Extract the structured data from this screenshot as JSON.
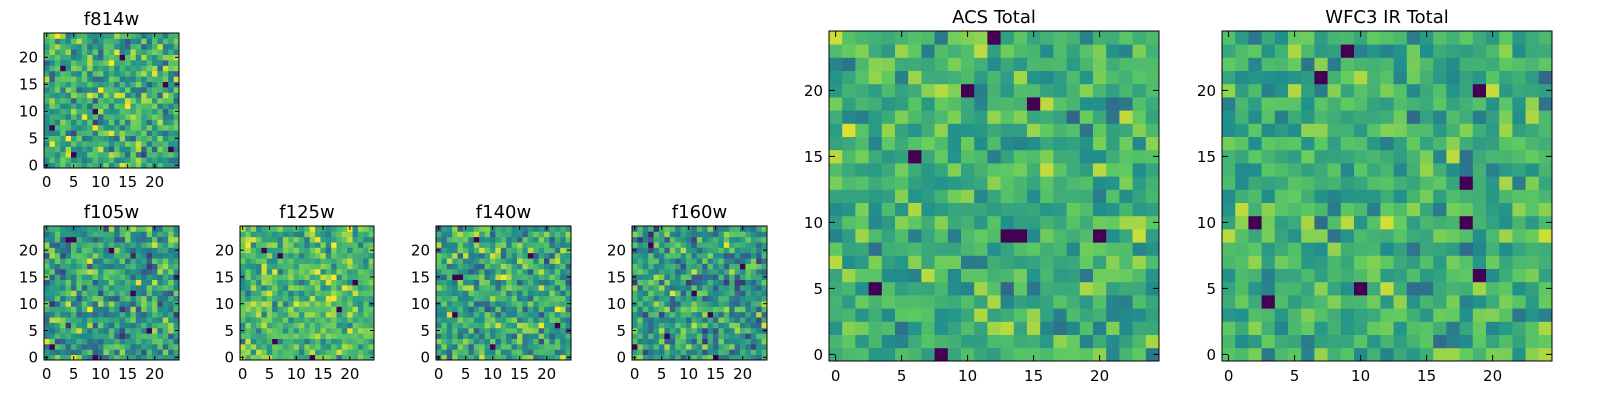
{
  "figure": {
    "description_none": ""
  },
  "colormap": {
    "name": "viridis",
    "stops": [
      "#440154",
      "#3b528b",
      "#21918c",
      "#5ec962",
      "#fde725"
    ]
  },
  "chart_data": [
    {
      "id": "f814w",
      "type": "heatmap",
      "title": "f814w",
      "grid_size": 25,
      "xlim": [
        -0.5,
        24.5
      ],
      "ylim": [
        -0.5,
        24.5
      ],
      "xticks": [
        0,
        5,
        10,
        15,
        20
      ],
      "yticks": [
        0,
        5,
        10,
        15,
        20
      ],
      "value_range": [
        0,
        1
      ],
      "mean_level": 0.62,
      "spread": 0.28,
      "seed": 814,
      "dark_cells": [
        [
          5,
          2
        ],
        [
          9,
          10
        ],
        [
          23,
          3
        ],
        [
          22,
          15
        ],
        [
          14,
          20
        ],
        [
          3,
          18
        ],
        [
          1,
          7
        ]
      ]
    },
    {
      "id": "f105w",
      "type": "heatmap",
      "title": "f105w",
      "grid_size": 25,
      "xlim": [
        -0.5,
        24.5
      ],
      "ylim": [
        -0.5,
        24.5
      ],
      "xticks": [
        0,
        5,
        10,
        15,
        20
      ],
      "yticks": [
        0,
        5,
        10,
        15,
        20
      ],
      "value_range": [
        0,
        1
      ],
      "mean_level": 0.55,
      "spread": 0.28,
      "seed": 105,
      "dark_cells": [
        [
          4,
          22
        ],
        [
          5,
          22
        ],
        [
          9,
          0
        ],
        [
          1,
          2
        ],
        [
          16,
          12
        ],
        [
          19,
          5
        ],
        [
          12,
          20
        ]
      ]
    },
    {
      "id": "f125w",
      "type": "heatmap",
      "title": "f125w",
      "grid_size": 25,
      "xlim": [
        -0.5,
        24.5
      ],
      "ylim": [
        -0.5,
        24.5
      ],
      "xticks": [
        0,
        5,
        10,
        15,
        20
      ],
      "yticks": [
        0,
        5,
        10,
        15,
        20
      ],
      "value_range": [
        0,
        1
      ],
      "mean_level": 0.68,
      "spread": 0.24,
      "seed": 125,
      "dark_cells": [
        [
          7,
          19
        ],
        [
          4,
          20
        ],
        [
          18,
          9
        ],
        [
          6,
          3
        ],
        [
          13,
          0
        ],
        [
          21,
          14
        ]
      ]
    },
    {
      "id": "f140w",
      "type": "heatmap",
      "title": "f140w",
      "grid_size": 25,
      "xlim": [
        -0.5,
        24.5
      ],
      "ylim": [
        -0.5,
        24.5
      ],
      "xticks": [
        0,
        5,
        10,
        15,
        20
      ],
      "yticks": [
        0,
        5,
        10,
        15,
        20
      ],
      "value_range": [
        0,
        1
      ],
      "mean_level": 0.6,
      "spread": 0.27,
      "seed": 140,
      "dark_cells": [
        [
          3,
          15
        ],
        [
          4,
          15
        ],
        [
          3,
          8
        ],
        [
          10,
          2
        ],
        [
          17,
          19
        ],
        [
          22,
          6
        ],
        [
          7,
          22
        ]
      ]
    },
    {
      "id": "f160w",
      "type": "heatmap",
      "title": "f160w",
      "grid_size": 25,
      "xlim": [
        -0.5,
        24.5
      ],
      "ylim": [
        -0.5,
        24.5
      ],
      "xticks": [
        0,
        5,
        10,
        15,
        20
      ],
      "yticks": [
        0,
        5,
        10,
        15,
        20
      ],
      "value_range": [
        0,
        1
      ],
      "mean_level": 0.55,
      "spread": 0.28,
      "seed": 160,
      "dark_cells": [
        [
          0,
          2
        ],
        [
          15,
          0
        ],
        [
          6,
          4
        ],
        [
          11,
          12
        ],
        [
          20,
          17
        ],
        [
          3,
          21
        ],
        [
          14,
          8
        ]
      ]
    },
    {
      "id": "acs-total",
      "type": "heatmap",
      "title": "ACS Total",
      "grid_size": 25,
      "xlim": [
        -0.5,
        24.5
      ],
      "ylim": [
        -0.5,
        24.5
      ],
      "xticks": [
        0,
        5,
        10,
        15,
        20
      ],
      "yticks": [
        0,
        5,
        10,
        15,
        20
      ],
      "value_range": [
        0,
        1
      ],
      "mean_level": 0.64,
      "spread": 0.2,
      "seed": 7001,
      "dark_cells": [
        [
          6,
          15
        ],
        [
          8,
          0
        ],
        [
          10,
          20
        ],
        [
          13,
          9
        ],
        [
          14,
          9
        ],
        [
          3,
          5
        ],
        [
          15,
          19
        ],
        [
          20,
          9
        ],
        [
          12,
          24
        ]
      ]
    },
    {
      "id": "wfc3-ir-total",
      "type": "heatmap",
      "title": "WFC3 IR Total",
      "grid_size": 25,
      "xlim": [
        -0.5,
        24.5
      ],
      "ylim": [
        -0.5,
        24.5
      ],
      "xticks": [
        0,
        5,
        10,
        15,
        20
      ],
      "yticks": [
        0,
        5,
        10,
        15,
        20
      ],
      "value_range": [
        0,
        1
      ],
      "mean_level": 0.64,
      "spread": 0.2,
      "seed": 7002,
      "dark_cells": [
        [
          7,
          21
        ],
        [
          9,
          23
        ],
        [
          19,
          20
        ],
        [
          2,
          10
        ],
        [
          18,
          13
        ],
        [
          18,
          10
        ],
        [
          19,
          6
        ],
        [
          10,
          5
        ],
        [
          3,
          4
        ]
      ]
    }
  ]
}
